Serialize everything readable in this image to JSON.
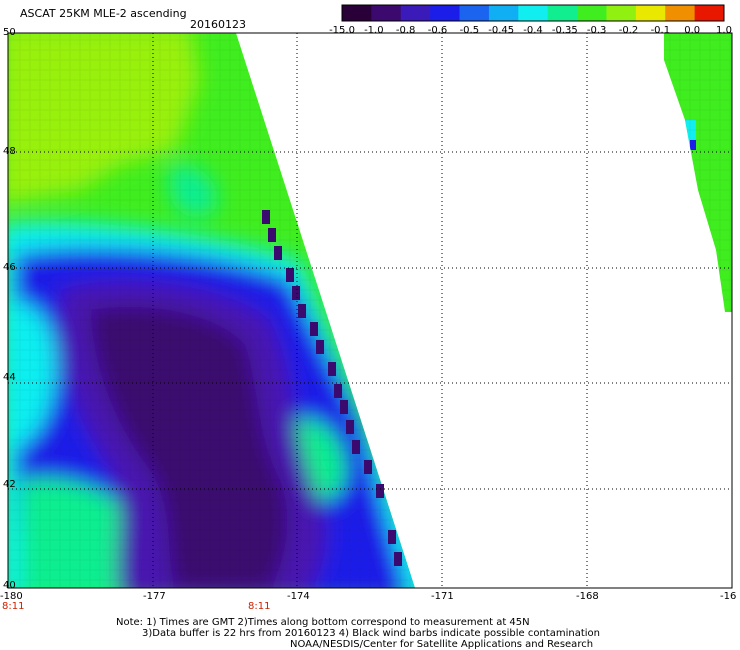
{
  "header": {
    "title": "ASCAT 25KM MLE-2 ascending",
    "date": "20160123"
  },
  "colorbar": {
    "labels": [
      "-15.0",
      "-1.0",
      "-0.8",
      "-0.6",
      "-0.5",
      "-0.45",
      "-0.4",
      "-0.35",
      "-0.3",
      "-0.2",
      "-0.1",
      "0.0",
      "1.0"
    ],
    "colors": [
      "#2a0038",
      "#3c0a6e",
      "#3a1ab8",
      "#1a1ee8",
      "#1a64f0",
      "#10aef2",
      "#10eef0",
      "#10ee90",
      "#40ee20",
      "#90f010",
      "#e8e800",
      "#f09000",
      "#e81800"
    ]
  },
  "map": {
    "lat_labels": [
      "50",
      "48",
      "46",
      "44",
      "42",
      "40"
    ],
    "lon_labels": [
      "-180",
      "-177",
      "-174",
      "-171",
      "-168",
      "-16"
    ],
    "time_labels": [
      "8:11",
      "8:11"
    ],
    "background": "#ffffff",
    "colors": {
      "dark": "#3a0a6e",
      "violet": "#4a18b0",
      "blue": "#1a1ee8",
      "cyan": "#10eef0",
      "teal": "#10ee90",
      "green": "#40ee20",
      "lime": "#98f010"
    }
  },
  "notes": {
    "line1": "Note: 1) Times are GMT  2)Times along bottom correspond to measurement at 45N",
    "line2": "3)Data buffer is 22 hrs from 20160123  4) Black wind barbs indicate possible contamination",
    "line3": "NOAA/NESDIS/Center for Satellite Applications and Research"
  }
}
